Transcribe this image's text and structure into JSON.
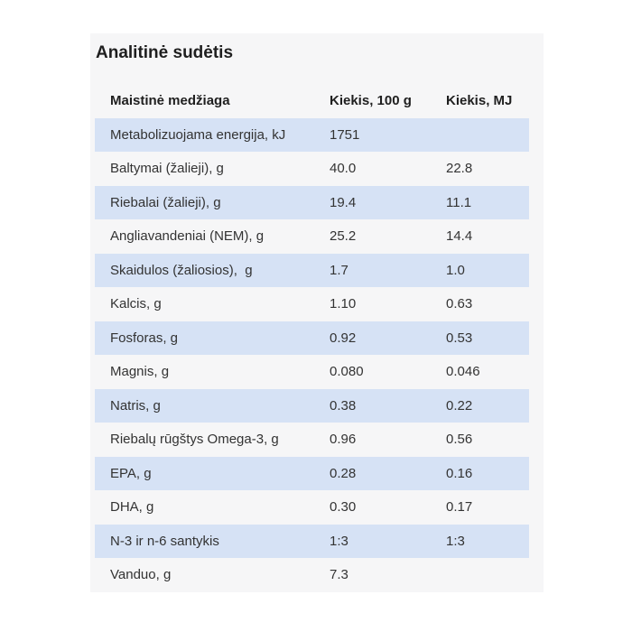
{
  "page": {
    "title": "Analitinė sudėtis"
  },
  "table": {
    "columns": [
      "Maistinė medžiaga",
      "Kiekis, 100 g",
      "Kiekis, MJ"
    ],
    "rows": [
      [
        "Metabolizuojama energija, kJ",
        "1751",
        ""
      ],
      [
        "Baltymai (žalieji), g",
        "40.0",
        "22.8"
      ],
      [
        "Riebalai (žalieji), g",
        "19.4",
        "11.1"
      ],
      [
        "Angliavandeniai (NEM), g",
        "25.2",
        "14.4"
      ],
      [
        "Skaidulos (žaliosios),  g",
        "1.7",
        "1.0"
      ],
      [
        "Kalcis, g",
        "1.10",
        "0.63"
      ],
      [
        "Fosforas, g",
        "0.92",
        "0.53"
      ],
      [
        "Magnis, g",
        "0.080",
        "0.046"
      ],
      [
        "Natris, g",
        "0.38",
        "0.22"
      ],
      [
        "Riebalų rūgštys Omega-3, g",
        "0.96",
        "0.56"
      ],
      [
        "EPA, g",
        "0.28",
        "0.16"
      ],
      [
        "DHA, g",
        "0.30",
        "0.17"
      ],
      [
        "N-3 ir n-6 santykis",
        "1:3",
        "1:3"
      ],
      [
        "Vanduo, g",
        "7.3",
        ""
      ]
    ]
  },
  "colors": {
    "page_background": "#ffffff",
    "card_background": "#f6f6f7",
    "row_stripe_blue": "#d6e2f5",
    "body_text": "#333333",
    "heading_text": "#1f1f1f"
  }
}
